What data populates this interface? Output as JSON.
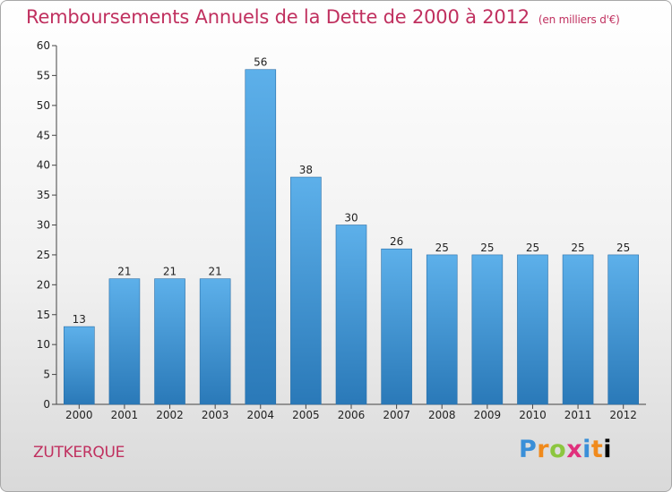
{
  "header": {
    "title": "Remboursements Annuels de la Dette de 2000 à 2012",
    "unit": "(en milliers d'€)"
  },
  "footer": {
    "city": "ZUTKERQUE",
    "logo_letters": [
      "P",
      "r",
      "o",
      "x",
      "i",
      "t",
      "i"
    ]
  },
  "colors": {
    "title": "#c0305f",
    "bar_top": "#5db0ea",
    "bar_bottom": "#2a79b8"
  },
  "chart_data": {
    "type": "bar",
    "categories": [
      "2000",
      "2001",
      "2002",
      "2003",
      "2004",
      "2005",
      "2006",
      "2007",
      "2008",
      "2009",
      "2010",
      "2011",
      "2012"
    ],
    "values": [
      13,
      21,
      21,
      21,
      56,
      38,
      30,
      26,
      25,
      25,
      25,
      25,
      25
    ],
    "ylim": [
      0,
      60
    ],
    "yticks": [
      0,
      5,
      10,
      15,
      20,
      25,
      30,
      35,
      40,
      45,
      50,
      55,
      60
    ],
    "grid": false,
    "legend": "none"
  }
}
